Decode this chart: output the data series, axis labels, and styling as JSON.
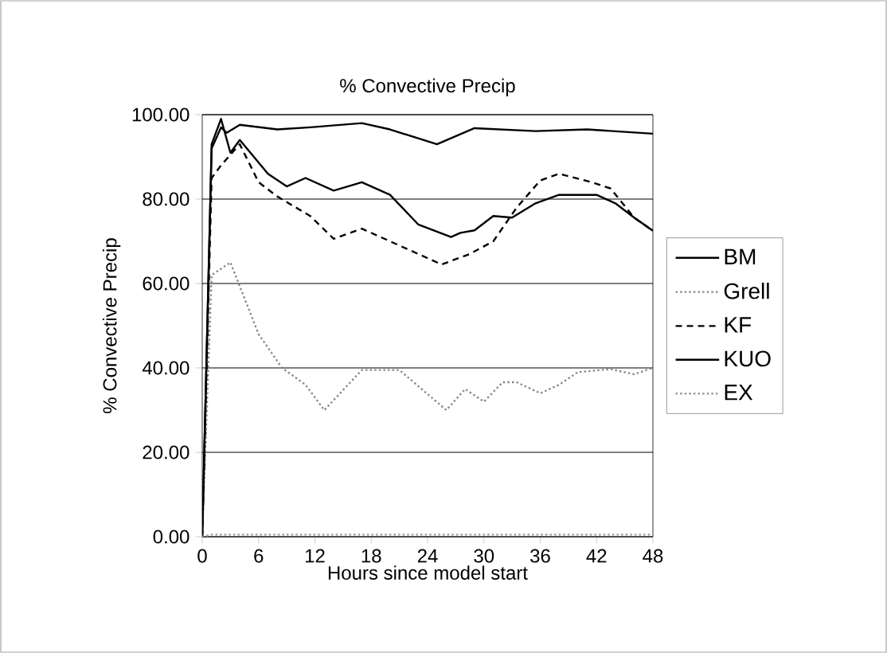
{
  "chart_data": {
    "type": "line",
    "title": "% Convective Precip",
    "xlabel": "Hours since model start",
    "ylabel": "% Convective Precip",
    "xlim": [
      0,
      48
    ],
    "xticks": [
      0,
      6,
      12,
      18,
      24,
      30,
      36,
      42,
      48
    ],
    "ylim": [
      0,
      100
    ],
    "yticks": [
      {
        "value": 0,
        "label": "0.00"
      },
      {
        "value": 20,
        "label": "20.00"
      },
      {
        "value": 40,
        "label": "40.00"
      },
      {
        "value": 60,
        "label": "60.00"
      },
      {
        "value": 80,
        "label": "80.00"
      },
      {
        "value": 100,
        "label": "100.00"
      }
    ],
    "grid": "y",
    "legend": "right",
    "marker": "none",
    "series": [
      {
        "name": "BM",
        "color": "#000000",
        "line_style": "solid",
        "x": [
          0,
          1,
          2,
          3,
          4,
          7,
          9,
          11,
          14,
          17,
          20,
          23,
          26.5,
          27.5,
          29,
          31,
          33,
          35.5,
          38,
          42,
          44,
          46,
          48
        ],
        "values": [
          0,
          93,
          99,
          91,
          94,
          86,
          83,
          85,
          82,
          84,
          81,
          74,
          71,
          72,
          72.6,
          76,
          75.6,
          79,
          81,
          81,
          79,
          75.6,
          72.5
        ]
      },
      {
        "name": "Grell",
        "color": "#888888",
        "line_style": "dotted",
        "x": [
          0,
          1,
          3,
          6,
          8.5,
          11,
          13,
          17,
          21,
          26,
          28,
          30,
          32,
          33.5,
          36,
          38,
          40,
          43.5,
          46,
          48
        ],
        "values": [
          0,
          62,
          65,
          48,
          40,
          36,
          30,
          39.5,
          39.5,
          30,
          35,
          32,
          36.6,
          36.6,
          34,
          36,
          39,
          39.7,
          38.5,
          40
        ]
      },
      {
        "name": "KF",
        "color": "#000000",
        "line_style": "dashed",
        "x": [
          0,
          1,
          2,
          4,
          6,
          8,
          11.5,
          14,
          17,
          21,
          25.5,
          28.5,
          31,
          33.5,
          36,
          38,
          41.5,
          43.5,
          46,
          48
        ],
        "values": [
          0,
          85,
          88,
          93,
          84,
          80.6,
          76,
          70.6,
          73,
          69,
          64.5,
          67,
          70,
          78,
          84.4,
          86,
          84,
          82.5,
          75.6,
          72.5
        ]
      },
      {
        "name": "KUO",
        "color": "#000000",
        "line_style": "solid",
        "x": [
          0,
          1,
          2,
          2.6,
          4,
          8,
          11.5,
          17,
          20,
          25,
          29,
          35.5,
          41,
          48
        ],
        "values": [
          0,
          92,
          97,
          95.7,
          97.6,
          96.5,
          97,
          98,
          96.5,
          93,
          96.8,
          96.1,
          96.5,
          95.5
        ]
      },
      {
        "name": "EX",
        "color": "#999999",
        "line_style": "dotted",
        "x": [
          0,
          1,
          6,
          12,
          18,
          24,
          30,
          36,
          42,
          48
        ],
        "values": [
          0,
          0.5,
          0.5,
          0.5,
          0.5,
          0.5,
          0.5,
          0.5,
          0.5,
          0.5
        ]
      }
    ]
  }
}
